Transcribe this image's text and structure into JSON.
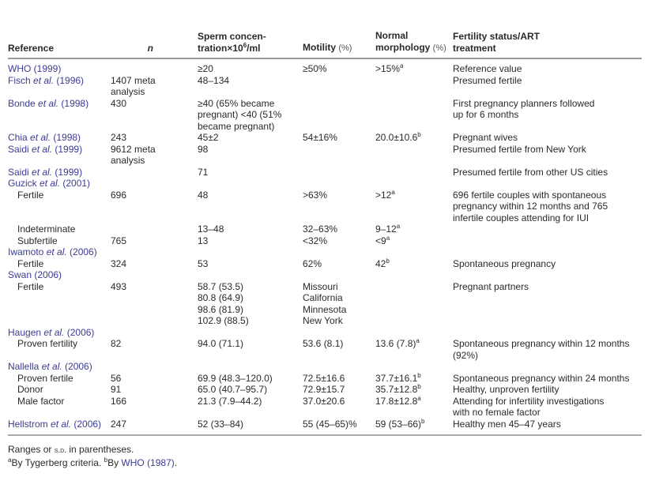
{
  "header": {
    "reference": "Reference",
    "n": "n",
    "concentration_line1": "Sperm concen-",
    "concentration_line2": "tration×10",
    "concentration_sup": "6",
    "concentration_unit": "/ml",
    "motility": "Motility",
    "motility_unit": "(%)",
    "morphology_line1": "Normal",
    "morphology_line2": "morphology",
    "morphology_unit": "(%)",
    "status_line1": "Fertility status/ART",
    "status_line2": "treatment"
  },
  "rows": [
    {
      "ref": {
        "author": "WHO (1999)"
      },
      "n": "",
      "conc": "≥20",
      "mot": "≥50%",
      "morph": ">15%",
      "morph_sup": "a",
      "status": "Reference value"
    },
    {
      "ref": {
        "author": "Fisch ",
        "etal": "et al.",
        "year": " (1996)"
      },
      "n": "1407 meta\nanalysis",
      "conc": "48–134",
      "mot": "",
      "morph": "",
      "status": "Presumed fertile"
    },
    {
      "ref": {
        "author": "Bonde ",
        "etal": "et al.",
        "year": " (1998)"
      },
      "n": "430",
      "conc": "≥40 (65% became\npregnant) <40 (51%\nbecame pregnant)",
      "mot": "",
      "morph": "",
      "status": "First pregnancy planners followed\nup for 6 months"
    },
    {
      "ref": {
        "author": "Chia ",
        "etal": "et al.",
        "year": " (1998)"
      },
      "n": "243",
      "conc": "45±2",
      "mot": "54±16%",
      "morph": "20.0±10.6",
      "morph_sup": "b",
      "status": "Pregnant wives"
    },
    {
      "ref": {
        "author": "Saidi ",
        "etal": "et al.",
        "year": " (1999)"
      },
      "n": "9612 meta\nanalysis",
      "conc": "98",
      "mot": "",
      "morph": "",
      "status": "Presumed fertile from New York"
    },
    {
      "ref": {
        "author": "Saidi ",
        "etal": "et al.",
        "year": " (1999)"
      },
      "n": "",
      "conc": "71",
      "mot": "",
      "morph": "",
      "status": "Presumed fertile from other US cities"
    },
    {
      "ref": {
        "author": "Guzick ",
        "etal": "et al.",
        "year": " (2001)"
      },
      "n": "",
      "conc": "",
      "mot": "",
      "morph": "",
      "status": ""
    },
    {
      "sub": "Fertile",
      "n": "696",
      "conc": "48",
      "mot": ">63%",
      "morph": ">12",
      "morph_sup": "a",
      "status": "696 fertile couples with spontaneous\npregnancy within 12 months and 765\ninfertile couples attending for IUI"
    },
    {
      "sub": "Indeterminate",
      "n": "",
      "conc": "13–48",
      "mot": "32–63%",
      "morph": "9–12",
      "morph_sup": "a",
      "status": ""
    },
    {
      "sub": "Subfertile",
      "n": "765",
      "conc": "13",
      "mot": "<32%",
      "morph": "<9",
      "morph_sup": "a",
      "status": ""
    },
    {
      "ref": {
        "author": "Iwamoto ",
        "etal": "et al.",
        "year": " (2006)"
      },
      "n": "",
      "conc": "",
      "mot": "",
      "morph": "",
      "status": ""
    },
    {
      "sub": "Fertile",
      "n": "324",
      "conc": "53",
      "mot": "62%",
      "morph": "42",
      "morph_sup": "b",
      "status": "Spontaneous pregnancy"
    },
    {
      "ref": {
        "author": "Swan (2006)"
      },
      "n": "",
      "conc": "",
      "mot": "",
      "morph": "",
      "status": ""
    },
    {
      "sub": "Fertile",
      "n": "493",
      "conc": "58.7 (53.5)\n80.8 (64.9)\n98.6 (81.9)\n102.9 (88.5)",
      "mot": "Missouri\nCalifornia\nMinnesota\nNew York",
      "morph": "",
      "status": "Pregnant partners"
    },
    {
      "ref": {
        "author": "Haugen ",
        "etal": "et al.",
        "year": " (2006)"
      },
      "n": "",
      "conc": "",
      "mot": "",
      "morph": "",
      "status": ""
    },
    {
      "sub": "Proven fertility",
      "n": "82",
      "conc": "94.0 (71.1)",
      "mot": "53.6 (8.1)",
      "morph": "13.6 (7.8)",
      "morph_sup": "a",
      "status": "Spontaneous pregnancy within 12 months\n(92%)"
    },
    {
      "ref": {
        "author": "Nallella ",
        "etal": "et al.",
        "year": " (2006)"
      },
      "n": "",
      "conc": "",
      "mot": "",
      "morph": "",
      "status": ""
    },
    {
      "sub": "Proven fertile",
      "n": "56",
      "conc": "69.9 (48.3–120.0)",
      "mot": "72.5±16.6",
      "morph": "37.7±16.1",
      "morph_sup": "b",
      "status": "Spontaneous pregnancy within 24 months"
    },
    {
      "sub": "Donor",
      "n": "91",
      "conc": "65.0 (40.7–95.7)",
      "mot": "72.9±15.7",
      "morph": "35.7±12.8",
      "morph_sup": "b",
      "status": "Healthy, unproven fertility"
    },
    {
      "sub": "Male factor",
      "n": "166",
      "conc": "21.3 (7.9–44.2)",
      "mot": "37.0±20.6",
      "morph": "17.8±12.8",
      "morph_sup": "a",
      "status": "Attending for infertility investigations\nwith no female factor"
    },
    {
      "ref": {
        "author": "Hellstrom ",
        "etal": "et al.",
        "year": " (2006)"
      },
      "n": "247",
      "conc": "52 (33–84)",
      "mot": "55 (45–65)%",
      "morph": "59 (53–66)",
      "morph_sup": "b",
      "status": "Healthy men 45–47 years"
    }
  ],
  "footnotes": {
    "line1_a": "Ranges or ",
    "line1_sd": "s.d.",
    "line1_b": " in parentheses.",
    "sup_a": "a",
    "note_a": "By Tygerberg criteria. ",
    "sup_b": "b",
    "note_b": "By ",
    "note_b_link": "WHO (1987)",
    "note_b_end": "."
  },
  "colors": {
    "link": "#3c3c96",
    "text": "#2a2a2a",
    "rule": "#999999"
  }
}
